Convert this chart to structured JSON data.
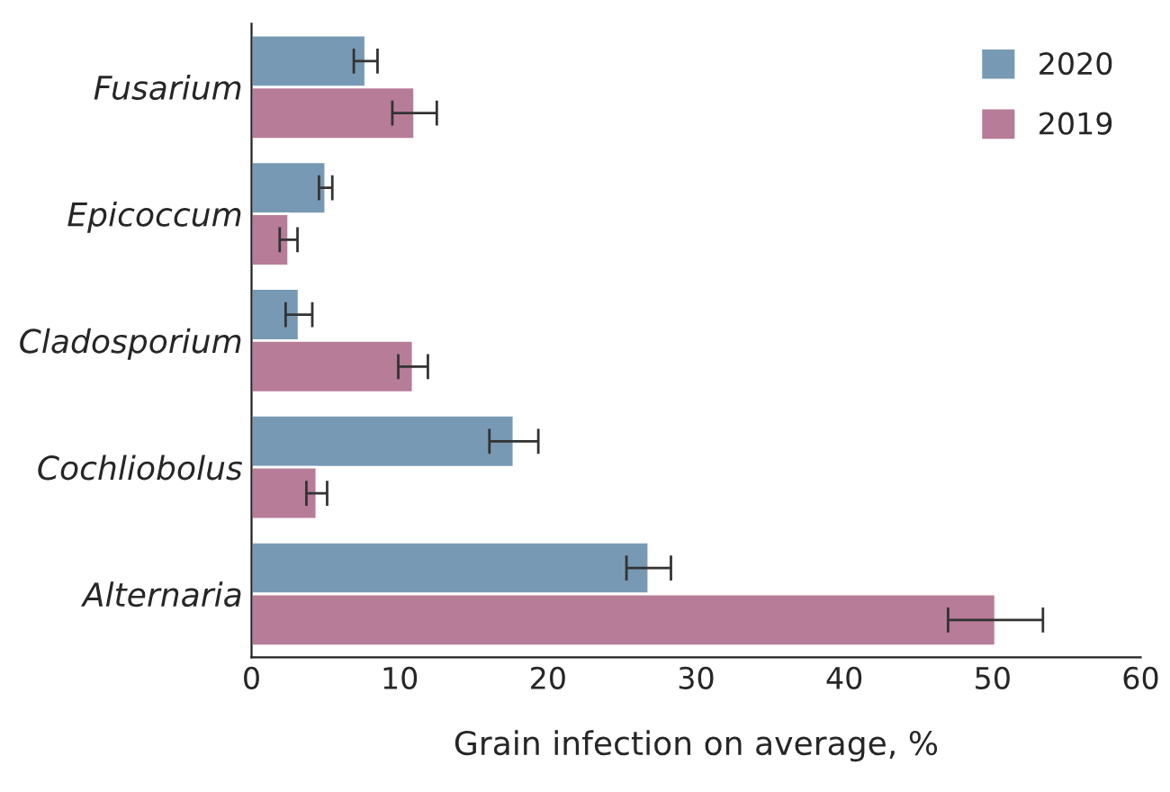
{
  "chart_data": {
    "type": "bar",
    "orientation": "horizontal",
    "xlabel": "Grain infection on average, %",
    "categories": [
      "Fusarium",
      "Epicoccum",
      "Cladosporium",
      "Cochliobolus",
      "Alternaria"
    ],
    "series": [
      {
        "name": "2020",
        "color": "#7899b3",
        "values": [
          7.7,
          5.0,
          3.2,
          17.7,
          26.8
        ],
        "errors": [
          0.8,
          0.45,
          0.9,
          1.65,
          1.5
        ]
      },
      {
        "name": "2019",
        "color": "#b67c98",
        "values": [
          11.0,
          2.5,
          10.9,
          4.4,
          50.2
        ],
        "errors": [
          1.5,
          0.6,
          1.0,
          0.7,
          3.2
        ]
      }
    ],
    "xlim": [
      0,
      60
    ],
    "xticks": [
      0,
      10,
      20,
      30,
      40,
      50,
      60
    ],
    "grid": false,
    "legend": "top right"
  }
}
